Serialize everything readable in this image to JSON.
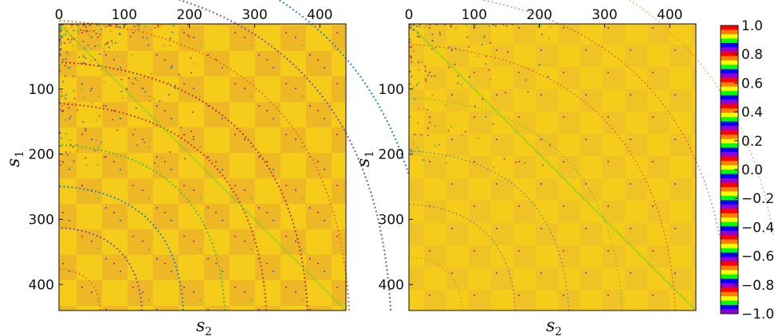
{
  "chart_data": [
    {
      "type": "heatmap",
      "xlabel": "s",
      "xlabel_sub": "2",
      "ylabel": "s",
      "ylabel_sub": "1",
      "x_ticks": [
        "0",
        "100",
        "200",
        "300",
        "400"
      ],
      "y_ticks": [
        "100",
        "200",
        "300",
        "400"
      ],
      "xlim": [
        0,
        440
      ],
      "ylim": [
        0,
        440
      ],
      "x_axis_position": "top",
      "y_axis_inverted": true,
      "pattern": "dense checkerboard with many diagonal bands"
    },
    {
      "type": "heatmap",
      "xlabel": "s",
      "xlabel_sub": "2",
      "ylabel": "s",
      "ylabel_sub": "1",
      "x_ticks": [
        "0",
        "100",
        "200",
        "300",
        "400"
      ],
      "y_ticks": [
        "100",
        "200",
        "300",
        "400"
      ],
      "xlim": [
        0,
        440
      ],
      "ylim": [
        0,
        440
      ],
      "x_axis_position": "top",
      "y_axis_inverted": true,
      "pattern": "sparser checkerboard with thin diagonal bands"
    }
  ],
  "colorbar": {
    "ticks": [
      "1.0",
      "0.8",
      "0.6",
      "0.4",
      "0.2",
      "0.0",
      "−0.2",
      "−0.4",
      "−0.6",
      "−0.8",
      "−1.0"
    ],
    "range": [
      -1.0,
      1.0
    ],
    "colormap": "prism"
  },
  "colors": {
    "background": "#f5cc1a",
    "ink": "#111111"
  }
}
